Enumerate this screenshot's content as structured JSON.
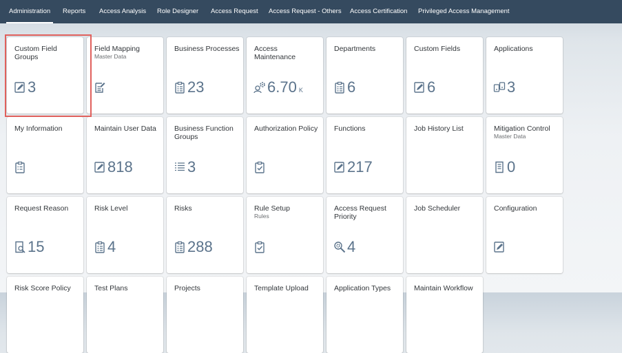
{
  "nav": {
    "tabs": [
      {
        "label": "Administration"
      },
      {
        "label": "Reports"
      },
      {
        "label": "Access Analysis"
      },
      {
        "label": "Role Designer"
      },
      {
        "label": "Access Request"
      },
      {
        "label": "Access Request - Others"
      },
      {
        "label": "Access Certification"
      },
      {
        "label": "Privileged Access Management"
      }
    ],
    "active_tab": "Administration"
  },
  "tiles": {
    "custom_field_groups": {
      "title": "Custom Field Groups",
      "value": "3",
      "icon": "edit-icon"
    },
    "field_mapping": {
      "title": "Field Mapping",
      "subtitle": "Master Data",
      "icon": "document-edit-icon"
    },
    "business_processes": {
      "title": "Business Processes",
      "value": "23",
      "icon": "checklist-icon"
    },
    "access_maintenance": {
      "title": "Access Maintenance",
      "value": "6.70",
      "scale": "K",
      "icon": "user-settings-icon"
    },
    "departments": {
      "title": "Departments",
      "value": "6",
      "icon": "checklist-icon"
    },
    "custom_fields": {
      "title": "Custom Fields",
      "value": "6",
      "icon": "edit-icon"
    },
    "applications": {
      "title": "Applications",
      "value": "3",
      "icon": "applications-icon"
    },
    "my_information": {
      "title": "My Information",
      "icon": "clipboard-list-icon"
    },
    "maintain_user_data": {
      "title": "Maintain User Data",
      "value": "818",
      "icon": "edit-icon"
    },
    "business_function_groups": {
      "title": "Business Function Groups",
      "value": "3",
      "icon": "list-icon"
    },
    "authorization_policy": {
      "title": "Authorization Policy",
      "icon": "clipboard-check-icon"
    },
    "functions": {
      "title": "Functions",
      "value": "217",
      "icon": "edit-icon"
    },
    "job_history_list": {
      "title": "Job History List"
    },
    "mitigation_control": {
      "title": "Mitigation Control",
      "subtitle": "Master Data",
      "value": "0",
      "icon": "document-icon"
    },
    "request_reason": {
      "title": "Request Reason",
      "value": "15",
      "icon": "document-search-icon"
    },
    "risk_level": {
      "title": "Risk Level",
      "value": "4",
      "icon": "checklist-icon"
    },
    "risks": {
      "title": "Risks",
      "value": "288",
      "icon": "checklist-icon"
    },
    "rule_setup": {
      "title": "Rule Setup",
      "subtitle": "Rules",
      "icon": "clipboard-check-icon"
    },
    "access_request_priority": {
      "title": "Access Request Priority",
      "value": "4",
      "icon": "search-settings-icon"
    },
    "job_scheduler": {
      "title": "Job Scheduler"
    },
    "configuration": {
      "title": "Configuration",
      "icon": "edit-icon"
    },
    "risk_score_policy": {
      "title": "Risk Score Policy"
    },
    "test_plans": {
      "title": "Test Plans"
    },
    "projects": {
      "title": "Projects"
    },
    "template_upload": {
      "title": "Template Upload"
    },
    "application_types": {
      "title": "Application Types"
    },
    "maintain_workflow": {
      "title": "Maintain Workflow"
    }
  },
  "colors": {
    "topbar": "#354a5f",
    "kpi": "#5b738b",
    "highlight": "#e0605c"
  }
}
